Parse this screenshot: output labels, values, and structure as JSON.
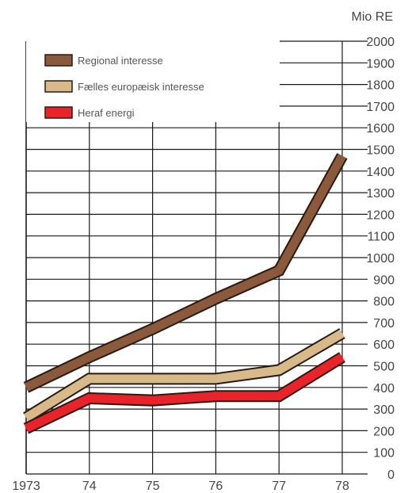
{
  "chart_data": {
    "type": "line",
    "unit_label": "Mio RE",
    "x": [
      "1973",
      "74",
      "75",
      "76",
      "77",
      "78"
    ],
    "ylim": [
      0,
      2000
    ],
    "yticks": [
      "0",
      "100",
      "200",
      "300",
      "400",
      "500",
      "600",
      "700",
      "800",
      "900",
      "1000",
      "1100",
      "1200",
      "1300",
      "1400",
      "1500",
      "1600",
      "1700",
      "1800",
      "1900",
      "2000"
    ],
    "grid": true,
    "legend_position": "top-left",
    "series": [
      {
        "name": "Regional interesse",
        "values": [
          400,
          540,
          670,
          810,
          940,
          1470
        ],
        "color": "#8b5a3c"
      },
      {
        "name": "Fælles europæisk interesse",
        "values": [
          260,
          440,
          440,
          440,
          480,
          650
        ],
        "color": "#d8b98a"
      },
      {
        "name": "Heraf energi",
        "values": [
          210,
          350,
          340,
          360,
          360,
          540
        ],
        "color": "#e8242a"
      }
    ]
  }
}
